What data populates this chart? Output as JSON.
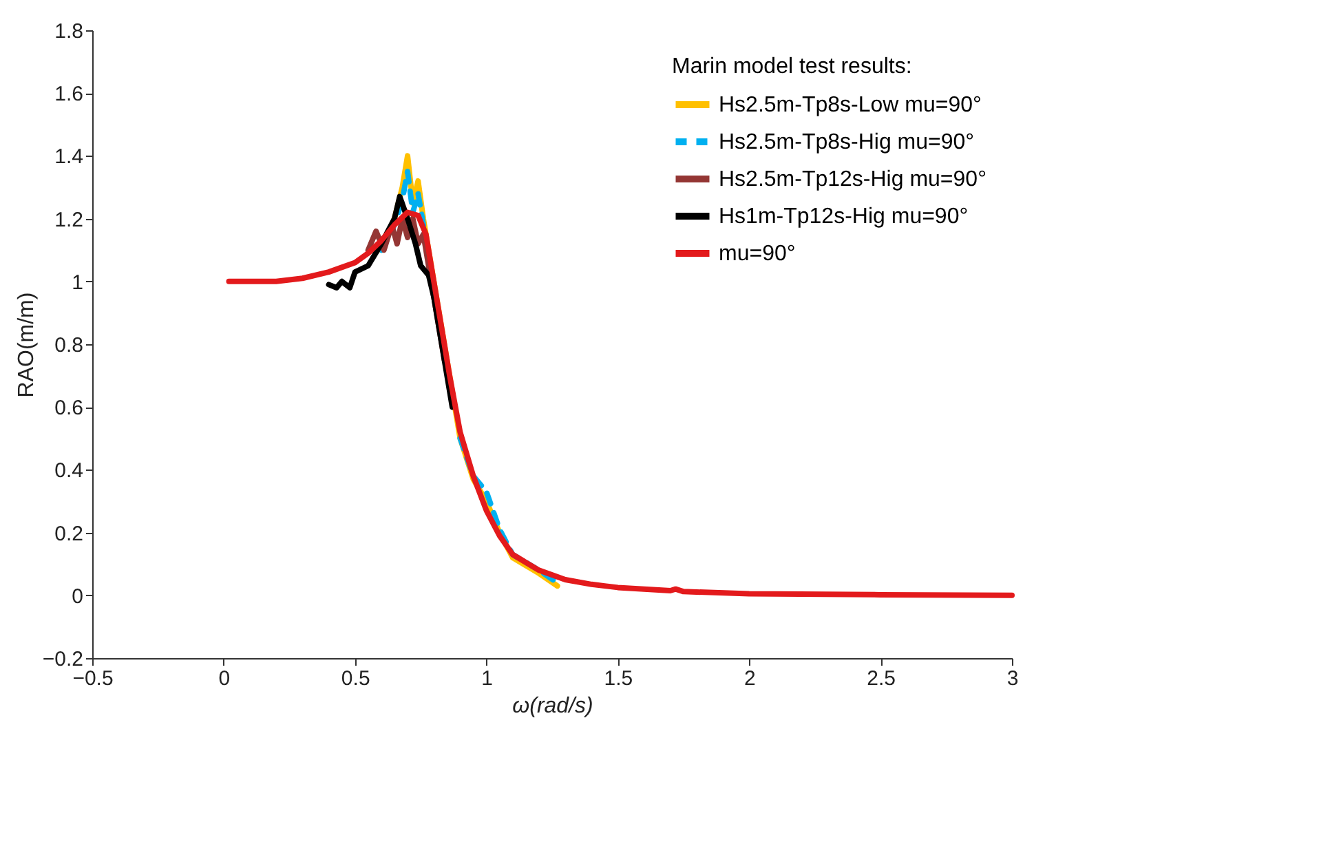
{
  "chart_data": {
    "type": "line",
    "xlabel": "ω(rad/s)",
    "ylabel": "RAO(m/m)",
    "legend_title": "Marin model test results:",
    "legend": "top right",
    "grid": false,
    "xlim": [
      -0.5,
      3
    ],
    "xticks": [
      -0.5,
      0,
      0.5,
      1,
      1.5,
      2,
      2.5,
      3
    ],
    "ylim": [
      -0.2,
      1.8
    ],
    "yticks": [
      -0.2,
      0,
      0.2,
      0.4,
      0.6,
      0.8,
      1,
      1.2,
      1.4,
      1.6,
      1.8
    ],
    "series": [
      {
        "name": "Hs2.5m-Tp8s-Low mu=90°",
        "color": "#ffc000",
        "line_style": "solid",
        "x": [
          0.6,
          0.65,
          0.68,
          0.7,
          0.72,
          0.74,
          0.76,
          0.78,
          0.82,
          0.86,
          0.9,
          0.95,
          1.0,
          1.05,
          1.1,
          1.2,
          1.27
        ],
        "values": [
          1.1,
          1.2,
          1.3,
          1.4,
          1.25,
          1.32,
          1.2,
          1.1,
          0.9,
          0.7,
          0.5,
          0.37,
          0.3,
          0.2,
          0.12,
          0.07,
          0.03
        ]
      },
      {
        "name": "Hs2.5m-Tp8s-Hig mu=90°",
        "color": "#00b0f0",
        "line_style": "dashed",
        "x": [
          0.6,
          0.65,
          0.68,
          0.7,
          0.72,
          0.74,
          0.76,
          0.78,
          0.82,
          0.86,
          0.9,
          0.95,
          1.0,
          1.05,
          1.1,
          1.2,
          1.27
        ],
        "values": [
          1.1,
          1.18,
          1.26,
          1.35,
          1.22,
          1.28,
          1.18,
          1.08,
          null,
          null,
          0.5,
          0.38,
          0.33,
          0.21,
          0.13,
          0.08,
          0.04
        ]
      },
      {
        "name": "Hs2.5m-Tp12s-Hig mu=90°",
        "color": "#943634",
        "line_style": "solid",
        "x": [
          0.55,
          0.58,
          0.61,
          0.64,
          0.66,
          0.68,
          0.7,
          0.72,
          0.74,
          0.76,
          0.78,
          0.8,
          0.84
        ],
        "values": [
          1.1,
          1.16,
          1.1,
          1.18,
          1.12,
          1.2,
          1.14,
          1.2,
          1.12,
          1.15,
          1.05,
          0.95,
          0.75
        ]
      },
      {
        "name": "Hs1m-Tp12s-Hig mu=90°",
        "color": "#000000",
        "line_style": "solid",
        "x": [
          0.4,
          0.43,
          0.45,
          0.48,
          0.5,
          0.55,
          0.6,
          0.65,
          0.67,
          0.7,
          0.73,
          0.75,
          0.78,
          0.8,
          0.85,
          0.87
        ],
        "values": [
          0.99,
          0.98,
          1.0,
          0.98,
          1.03,
          1.05,
          1.12,
          1.2,
          1.27,
          1.2,
          1.12,
          1.05,
          1.02,
          0.95,
          0.7,
          0.6
        ]
      },
      {
        "name": "mu=90°",
        "color": "#e31a1c",
        "line_style": "solid",
        "x": [
          0.02,
          0.2,
          0.3,
          0.4,
          0.5,
          0.55,
          0.6,
          0.65,
          0.7,
          0.74,
          0.77,
          0.8,
          0.83,
          0.86,
          0.9,
          0.95,
          1.0,
          1.05,
          1.1,
          1.2,
          1.3,
          1.4,
          1.45,
          1.5,
          1.6,
          1.7,
          1.72,
          1.75,
          2,
          2.5,
          3
        ],
        "values": [
          1.0,
          1.0,
          1.01,
          1.03,
          1.06,
          1.09,
          1.13,
          1.18,
          1.22,
          1.21,
          1.15,
          1.0,
          0.85,
          0.7,
          0.52,
          0.38,
          0.27,
          0.19,
          0.13,
          0.08,
          0.05,
          0.035,
          0.03,
          0.025,
          0.02,
          0.015,
          0.02,
          0.012,
          0.005,
          0.002,
          0
        ]
      }
    ]
  }
}
